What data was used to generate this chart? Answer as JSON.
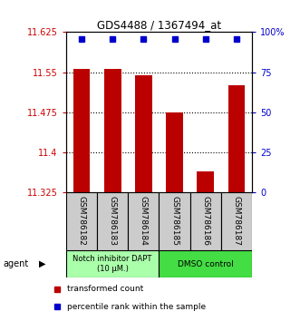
{
  "title": "GDS4488 / 1367494_at",
  "samples": [
    "GSM786182",
    "GSM786183",
    "GSM786184",
    "GSM786185",
    "GSM786186",
    "GSM786187"
  ],
  "bar_values": [
    11.556,
    11.557,
    11.544,
    11.475,
    11.365,
    11.525
  ],
  "bar_color": "#bb0000",
  "percentile_color": "#0000cc",
  "ymin": 11.325,
  "ymax": 11.625,
  "yticks": [
    11.325,
    11.4,
    11.475,
    11.55,
    11.625
  ],
  "ytick_labels": [
    "11.325",
    "11.4",
    "11.475",
    "11.55",
    "11.625"
  ],
  "right_yticks": [
    0,
    25,
    50,
    75,
    100
  ],
  "right_ytick_labels": [
    "0",
    "25",
    "50",
    "75",
    "100%"
  ],
  "group1_label": "Notch inhibitor DAPT\n(10 μM.)",
  "group1_color": "#aaffaa",
  "group2_label": "DMSO control",
  "group2_color": "#44dd44",
  "agent_label": "agent",
  "legend_items": [
    {
      "color": "#bb0000",
      "label": "transformed count"
    },
    {
      "color": "#0000cc",
      "label": "percentile rank within the sample"
    }
  ],
  "background_color": "#ffffff",
  "bar_width": 0.55,
  "percentile_marker_size": 5,
  "tick_area_color": "#cccccc"
}
